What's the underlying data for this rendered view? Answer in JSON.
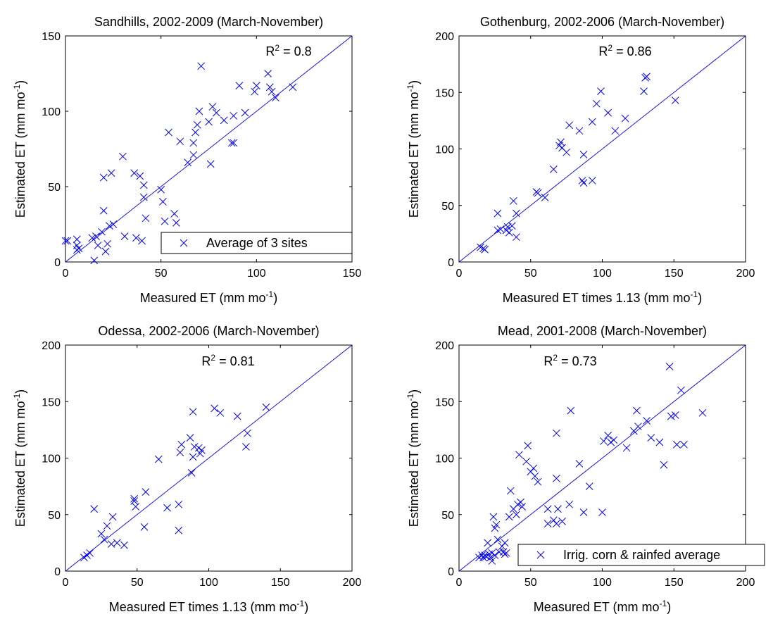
{
  "chart_data": [
    {
      "type": "scatter",
      "title": "Sandhills, 2002-2009 (March-November)",
      "xlabel": "Measured ET (mm mo",
      "xlabel_sup": "-1",
      "xlabel_end": ")",
      "ylabel": "Estimated ET (mm mo",
      "ylabel_sup": "-1",
      "ylabel_end": ")",
      "xlim": [
        0,
        150
      ],
      "ylim": [
        0,
        150
      ],
      "xticks": [
        0,
        50,
        100,
        150
      ],
      "yticks": [
        0,
        50,
        100,
        150
      ],
      "r2_label": "R",
      "r2_sup": "2",
      "r2_value": " = 0.8",
      "legend": "Average of 3 sites",
      "legend_position": "bottom-right",
      "one_to_one_line": true,
      "grid": false,
      "color": "#0000ff",
      "marker": "x",
      "points": [
        [
          0,
          14
        ],
        [
          1,
          14
        ],
        [
          6,
          15
        ],
        [
          6,
          11
        ],
        [
          6,
          8
        ],
        [
          7,
          9
        ],
        [
          14,
          16
        ],
        [
          16,
          17
        ],
        [
          15,
          1
        ],
        [
          17,
          11
        ],
        [
          19,
          20
        ],
        [
          20,
          34
        ],
        [
          20,
          56
        ],
        [
          21,
          7
        ],
        [
          22,
          12
        ],
        [
          23,
          24
        ],
        [
          24,
          59
        ],
        [
          25,
          25
        ],
        [
          30,
          70
        ],
        [
          31,
          17
        ],
        [
          36,
          59
        ],
        [
          37,
          16
        ],
        [
          39,
          57
        ],
        [
          40,
          14
        ],
        [
          41,
          43
        ],
        [
          41,
          51
        ],
        [
          42,
          29
        ],
        [
          50,
          48
        ],
        [
          51,
          40
        ],
        [
          52,
          27
        ],
        [
          54,
          86
        ],
        [
          57,
          32
        ],
        [
          58,
          26
        ],
        [
          60,
          80
        ],
        [
          64,
          66
        ],
        [
          67,
          79
        ],
        [
          67,
          71
        ],
        [
          68,
          86
        ],
        [
          69,
          91
        ],
        [
          70,
          100
        ],
        [
          71,
          130
        ],
        [
          75,
          93
        ],
        [
          76,
          65
        ],
        [
          77,
          103
        ],
        [
          79,
          99
        ],
        [
          83,
          94
        ],
        [
          87,
          79
        ],
        [
          88,
          79
        ],
        [
          88,
          97
        ],
        [
          91,
          117
        ],
        [
          94,
          99
        ],
        [
          99,
          113
        ],
        [
          100,
          117
        ],
        [
          106,
          125
        ],
        [
          107,
          116
        ],
        [
          108,
          113
        ],
        [
          110,
          109
        ],
        [
          119,
          116
        ]
      ]
    },
    {
      "type": "scatter",
      "title": "Gothenburg, 2002-2006 (March-November)",
      "xlabel": "Measured ET times 1.13 (mm mo",
      "xlabel_sup": "-1",
      "xlabel_end": ")",
      "ylabel": "Estimated ET (mm mo",
      "ylabel_sup": "-1",
      "ylabel_end": ")",
      "xlim": [
        0,
        200
      ],
      "ylim": [
        0,
        200
      ],
      "xticks": [
        0,
        50,
        100,
        150,
        200
      ],
      "yticks": [
        0,
        50,
        100,
        150,
        200
      ],
      "r2_label": "R",
      "r2_sup": "2",
      "r2_value": " = 0.86",
      "one_to_one_line": true,
      "grid": false,
      "color": "#0000ff",
      "marker": "x",
      "points": [
        [
          15,
          13
        ],
        [
          17,
          12
        ],
        [
          18,
          11
        ],
        [
          27,
          28
        ],
        [
          27,
          43
        ],
        [
          29,
          29
        ],
        [
          33,
          28
        ],
        [
          34,
          31
        ],
        [
          35,
          26
        ],
        [
          37,
          32
        ],
        [
          38,
          54
        ],
        [
          40,
          43
        ],
        [
          40,
          22
        ],
        [
          54,
          62
        ],
        [
          55,
          61
        ],
        [
          60,
          57
        ],
        [
          66,
          82
        ],
        [
          70,
          103
        ],
        [
          71,
          106
        ],
        [
          72,
          101
        ],
        [
          75,
          97
        ],
        [
          77,
          121
        ],
        [
          84,
          116
        ],
        [
          86,
          72
        ],
        [
          87,
          70
        ],
        [
          87,
          95
        ],
        [
          93,
          72
        ],
        [
          93,
          124
        ],
        [
          96,
          140
        ],
        [
          99,
          151
        ],
        [
          104,
          132
        ],
        [
          109,
          116
        ],
        [
          116,
          127
        ],
        [
          129,
          151
        ],
        [
          130,
          163
        ],
        [
          131,
          164
        ],
        [
          151,
          143
        ]
      ]
    },
    {
      "type": "scatter",
      "title": "Odessa, 2002-2006 (March-November)",
      "xlabel": "Measured ET times 1.13 (mm mo",
      "xlabel_sup": "-1",
      "xlabel_end": ")",
      "ylabel": "Estimated ET (mm mo",
      "ylabel_sup": "-1",
      "ylabel_end": ")",
      "xlim": [
        0,
        200
      ],
      "ylim": [
        0,
        200
      ],
      "xticks": [
        0,
        50,
        100,
        150,
        200
      ],
      "yticks": [
        0,
        50,
        100,
        150,
        200
      ],
      "r2_label": "R",
      "r2_sup": "2",
      "r2_value": " = 0.81",
      "one_to_one_line": true,
      "grid": false,
      "color": "#0000ff",
      "marker": "x",
      "points": [
        [
          13,
          12
        ],
        [
          15,
          14
        ],
        [
          17,
          16
        ],
        [
          20,
          55
        ],
        [
          25,
          33
        ],
        [
          27,
          28
        ],
        [
          29,
          40
        ],
        [
          32,
          24
        ],
        [
          33,
          48
        ],
        [
          36,
          25
        ],
        [
          41,
          23
        ],
        [
          48,
          64
        ],
        [
          48,
          62
        ],
        [
          49,
          57
        ],
        [
          55,
          39
        ],
        [
          56,
          70
        ],
        [
          65,
          99
        ],
        [
          71,
          56
        ],
        [
          79,
          59
        ],
        [
          79,
          36
        ],
        [
          80,
          105
        ],
        [
          81,
          112
        ],
        [
          87,
          118
        ],
        [
          88,
          87
        ],
        [
          89,
          101
        ],
        [
          89,
          141
        ],
        [
          90,
          110
        ],
        [
          93,
          109
        ],
        [
          94,
          104
        ],
        [
          95,
          107
        ],
        [
          104,
          144
        ],
        [
          108,
          140
        ],
        [
          120,
          137
        ],
        [
          126,
          110
        ],
        [
          127,
          122
        ],
        [
          140,
          145
        ]
      ]
    },
    {
      "type": "scatter",
      "title": "Mead, 2001-2008 (March-November)",
      "xlabel": "Measured ET (mm mo",
      "xlabel_sup": "-1",
      "xlabel_end": ")",
      "ylabel": "Estimated ET (mm mo",
      "ylabel_sup": "-1",
      "ylabel_end": ")",
      "xlim": [
        0,
        200
      ],
      "ylim": [
        0,
        200
      ],
      "xticks": [
        0,
        50,
        100,
        150,
        200
      ],
      "yticks": [
        0,
        50,
        100,
        150,
        200
      ],
      "r2_label": "R",
      "r2_sup": "2",
      "r2_value": " = 0.73",
      "legend": "Irrig. corn & rainfed average",
      "legend_position": "bottom-right",
      "one_to_one_line": true,
      "grid": false,
      "color": "#0000ff",
      "marker": "x",
      "points": [
        [
          14,
          12
        ],
        [
          16,
          14
        ],
        [
          17,
          12
        ],
        [
          18,
          14
        ],
        [
          19,
          13
        ],
        [
          20,
          25
        ],
        [
          21,
          15
        ],
        [
          22,
          12
        ],
        [
          23,
          16
        ],
        [
          23,
          9
        ],
        [
          24,
          48
        ],
        [
          25,
          14
        ],
        [
          25,
          38
        ],
        [
          26,
          41
        ],
        [
          27,
          28
        ],
        [
          28,
          17
        ],
        [
          30,
          22
        ],
        [
          31,
          17
        ],
        [
          32,
          15
        ],
        [
          32,
          25
        ],
        [
          33,
          16
        ],
        [
          35,
          48
        ],
        [
          36,
          71
        ],
        [
          38,
          55
        ],
        [
          40,
          50
        ],
        [
          41,
          59
        ],
        [
          42,
          103
        ],
        [
          43,
          61
        ],
        [
          44,
          57
        ],
        [
          47,
          97
        ],
        [
          48,
          111
        ],
        [
          50,
          88
        ],
        [
          52,
          91
        ],
        [
          53,
          84
        ],
        [
          55,
          79
        ],
        [
          62,
          55
        ],
        [
          62,
          42
        ],
        [
          66,
          45
        ],
        [
          68,
          82
        ],
        [
          68,
          42
        ],
        [
          68,
          122
        ],
        [
          69,
          55
        ],
        [
          72,
          44
        ],
        [
          77,
          59
        ],
        [
          78,
          142
        ],
        [
          84,
          95
        ],
        [
          87,
          52
        ],
        [
          91,
          75
        ],
        [
          100,
          52
        ],
        [
          101,
          115
        ],
        [
          104,
          120
        ],
        [
          106,
          114
        ],
        [
          108,
          116
        ],
        [
          117,
          109
        ],
        [
          122,
          124
        ],
        [
          124,
          142
        ],
        [
          125,
          128
        ],
        [
          131,
          133
        ],
        [
          134,
          118
        ],
        [
          140,
          114
        ],
        [
          143,
          94
        ],
        [
          147,
          181
        ],
        [
          148,
          137
        ],
        [
          151,
          138
        ],
        [
          152,
          112
        ],
        [
          155,
          160
        ],
        [
          157,
          112
        ],
        [
          170,
          140
        ]
      ]
    }
  ]
}
